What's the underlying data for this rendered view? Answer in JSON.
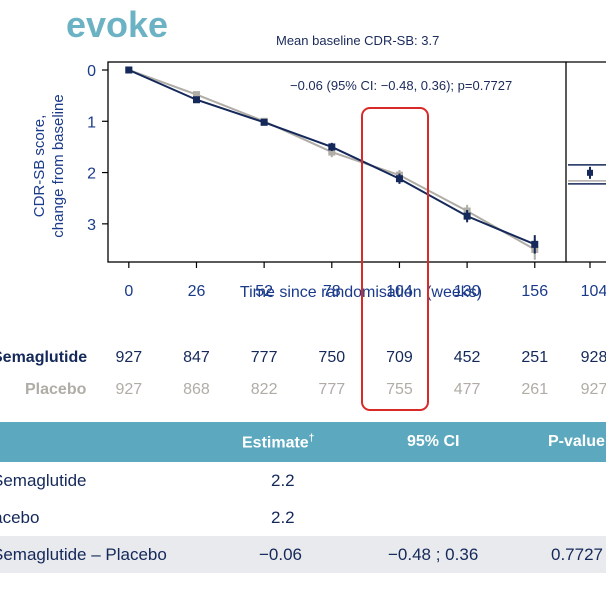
{
  "brand": "evoke",
  "chart_data": {
    "type": "line",
    "subtitle": "Mean baseline CDR-SB: 3.7",
    "annotation": "−0.06 (95% CI: −0.48, 0.36); p=0.7727",
    "ylabel_lines": [
      "CDR-SB score,",
      "change from baseline"
    ],
    "xlabel": "Time since randomisation (weeks)",
    "x": [
      0,
      26,
      52,
      78,
      104,
      130,
      156
    ],
    "xlim": [
      -8,
      168
    ],
    "ylim": [
      0,
      3.9
    ],
    "y_inverted": true,
    "yticks": [
      0,
      1,
      2,
      3
    ],
    "series": [
      {
        "name": "Semaglutide",
        "color": "#14285a",
        "values": [
          0,
          0.58,
          1.02,
          1.5,
          2.12,
          2.85,
          3.4
        ],
        "err": [
          0.03,
          0.04,
          0.06,
          0.08,
          0.1,
          0.12,
          0.18
        ]
      },
      {
        "name": "Placebo",
        "color": "#b0aca6",
        "values": [
          0,
          0.48,
          1.0,
          1.6,
          2.05,
          2.75,
          3.5
        ],
        "err": [
          0.03,
          0.04,
          0.06,
          0.1,
          0.1,
          0.12,
          0.2
        ]
      }
    ],
    "side_panel": {
      "xtick": "104",
      "semaglutide_value": 2.2,
      "placebo_value": 2.2
    },
    "numbers_at_risk": {
      "semaglutide_label": "Semaglutide",
      "placebo_label": "Placebo",
      "semaglutide": [
        "927",
        "847",
        "777",
        "750",
        "709",
        "452",
        "251",
        "928"
      ],
      "placebo": [
        "927",
        "868",
        "822",
        "777",
        "755",
        "477",
        "261",
        "927"
      ]
    }
  },
  "table": {
    "headers": {
      "estimate": "Estimate",
      "estimate_mark": "†",
      "ci": "95% CI",
      "p": "P-value"
    },
    "rows": [
      {
        "label": "Semaglutide",
        "estimate": "2.2",
        "ci": "",
        "p": ""
      },
      {
        "label": "Placebo",
        "estimate": "2.2",
        "ci": "",
        "p": ""
      },
      {
        "label": "Semaglutide – Placebo",
        "estimate": "−0.06",
        "ci": "−0.48 ; 0.36",
        "p": "0.7727"
      }
    ]
  }
}
